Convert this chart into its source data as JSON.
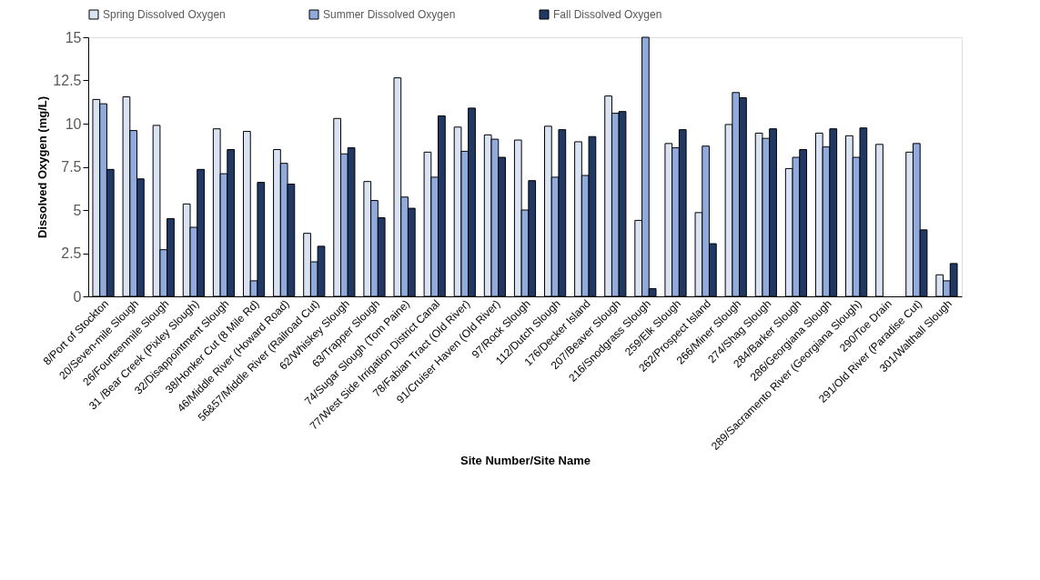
{
  "chart_data": {
    "type": "bar",
    "xlabel": "Site Number/Site Name",
    "ylabel": "Dissolved Oxygen (mg/L)",
    "categories": [
      "8/Port of Stockton",
      "20/Seven-mile Slough",
      "26/Fourteenmile Slough",
      "31 /Bear Creek (Pixley Slough)",
      "32/Disappointment Slough",
      "38/Honker Cut (8 Mile Rd)",
      "46/Middle River (Howard Road)",
      "56&57/Middle River (Railroad Cut)",
      "62/Whiskey Slough",
      "63/Trapper Slough",
      "74/Sugar Slough (Tom Paine)",
      "77/West Side Irrigation District Canal",
      "78/Fabian Tract (Old River)",
      "91/Cruiser Haven (Old River)",
      "97/Rock Slough",
      "112/Dutch Slough",
      "176/Decker Island",
      "207/Beaver Slough",
      "216/Snodgrass Slough",
      "259/Elk Slough",
      "262/Prospect Island",
      "266/Miner Slough",
      "274/Shag Slough",
      "284/Barker Slough",
      "286/Georgiana Slough",
      "289/Sacramento River (Georgiana Slough)",
      "290/Toe Drain",
      "291/Old River (Paradise Cut)",
      "301/Walthall Slough"
    ],
    "series": [
      {
        "name": "Spring Dissolved Oxygen",
        "color": "#dae3f3",
        "values": [
          11.4,
          11.55,
          9.9,
          5.35,
          9.7,
          9.55,
          8.5,
          3.65,
          10.3,
          6.65,
          12.65,
          8.35,
          9.8,
          9.35,
          9.05,
          9.85,
          8.95,
          11.6,
          4.4,
          8.85,
          4.85,
          9.95,
          9.45,
          7.4,
          9.45,
          9.3,
          8.8,
          8.35,
          1.25
        ]
      },
      {
        "name": "Summer Dissolved Oxygen",
        "color": "#8faadc",
        "values": [
          11.15,
          9.6,
          2.7,
          4.0,
          7.1,
          0.9,
          7.7,
          2.0,
          8.25,
          5.55,
          5.75,
          6.9,
          8.4,
          9.1,
          5.0,
          6.9,
          7.0,
          10.6,
          15,
          8.6,
          8.7,
          11.8,
          9.15,
          8.05,
          8.65,
          8.05,
          null,
          8.85,
          0.9
        ]
      },
      {
        "name": "Fall Dissolved Oxygen",
        "color": "#203864",
        "values": [
          7.35,
          6.8,
          4.5,
          7.35,
          8.5,
          6.6,
          6.5,
          2.9,
          8.6,
          4.55,
          5.1,
          10.45,
          10.9,
          8.05,
          6.7,
          9.65,
          9.25,
          10.7,
          0.45,
          9.65,
          3.05,
          11.5,
          9.7,
          8.5,
          9.7,
          9.75,
          null,
          3.85,
          1.9
        ]
      }
    ],
    "ylim": [
      0,
      15
    ],
    "yticks": [
      0,
      2.5,
      5,
      7.5,
      10,
      12.5,
      15
    ],
    "grid": false,
    "legend": "top"
  }
}
